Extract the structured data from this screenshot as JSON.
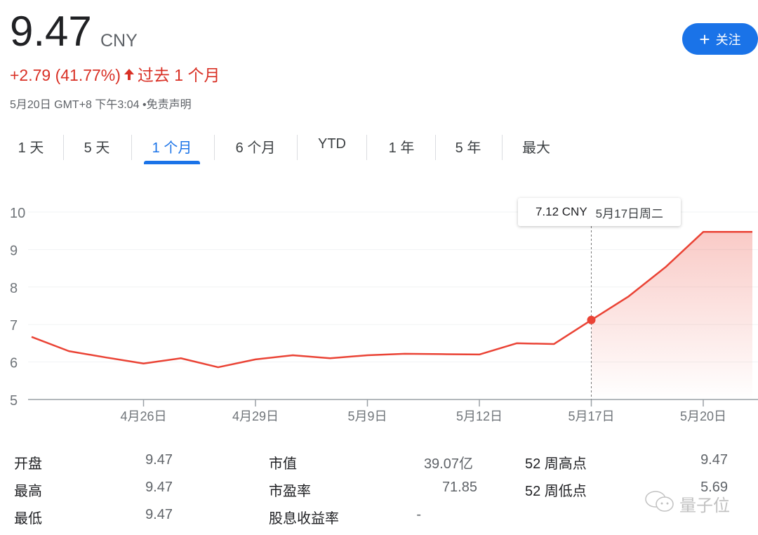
{
  "quote": {
    "price": "9.47",
    "currency": "CNY",
    "change": "+2.79 (41.77%)",
    "change_direction_icon": "arrow-up-icon",
    "change_period": "过去 1 个月",
    "timestamp": "5月20日 GMT+8 下午3:04",
    "separator": "•",
    "disclaimer": "免责声明",
    "up_color": "#d93025"
  },
  "follow_button": {
    "icon": "plus-icon",
    "label": "关注",
    "color": "#1a73e8"
  },
  "tabs": [
    {
      "label": "1 天"
    },
    {
      "label": "5 天"
    },
    {
      "label": "1 个月",
      "active": true
    },
    {
      "label": "6 个月"
    },
    {
      "label": "YTD"
    },
    {
      "label": "1 年"
    },
    {
      "label": "5 年"
    },
    {
      "label": "最大"
    }
  ],
  "tooltip": {
    "price": "7.12 CNY",
    "date": "5月17日周二"
  },
  "chart_data": {
    "type": "area",
    "x": [
      "4月21日",
      "4月22日",
      "4月25日",
      "4月26日",
      "4月27日",
      "4月28日",
      "4月29日",
      "5月5日",
      "5月6日",
      "5月9日",
      "5月10日",
      "5月11日",
      "5月12日",
      "5月13日",
      "5月16日",
      "5月17日",
      "5月18日",
      "5月19日",
      "5月20日"
    ],
    "values": [
      6.67,
      6.29,
      6.12,
      5.96,
      6.1,
      5.86,
      6.07,
      6.18,
      6.1,
      6.18,
      6.22,
      6.21,
      6.2,
      6.5,
      6.48,
      7.12,
      7.75,
      8.54,
      9.47
    ],
    "ylim": [
      5,
      10
    ],
    "yticks": [
      "5",
      "6",
      "7",
      "8",
      "9",
      "10"
    ],
    "xticks": [
      "4月26日",
      "4月29日",
      "5月9日",
      "5月12日",
      "5月17日",
      "5月20日"
    ],
    "highlight": {
      "x": "5月17日",
      "y": 7.12
    },
    "line_color": "#ea4335",
    "grid": true
  },
  "stats": [
    {
      "label": "开盘",
      "value": "9.47"
    },
    {
      "label": "最高",
      "value": "9.47"
    },
    {
      "label": "最低",
      "value": "9.47"
    },
    {
      "label": "市值",
      "value": "39.07亿"
    },
    {
      "label": "市盈率",
      "value": "71.85"
    },
    {
      "label": "股息收益率",
      "value": "-"
    },
    {
      "label": "52 周高点",
      "value": "9.47"
    },
    {
      "label": "52 周低点",
      "value": "5.69"
    }
  ],
  "watermark": "量子位"
}
